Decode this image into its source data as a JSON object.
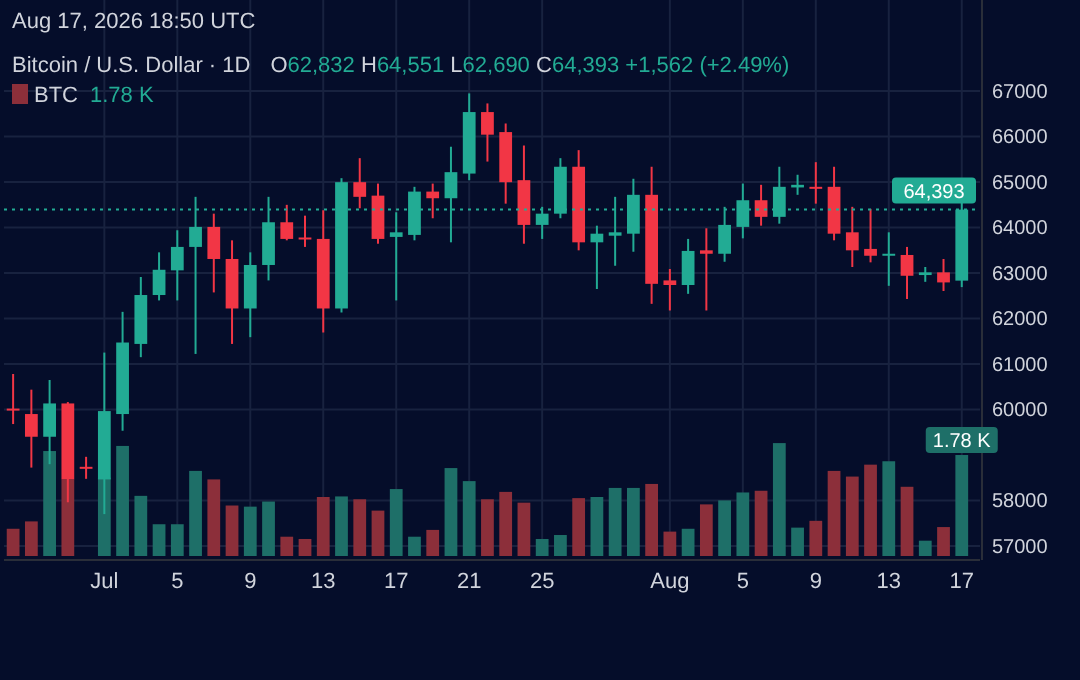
{
  "chart_data": {
    "type": "candlestick",
    "title": "Bitcoin / U.S. Dollar · 1D",
    "annotations": [
      "Aug 17, 2026 18:50 UTC",
      "O62,832 H64,551 L62,690 C64,393 +1,562 (+2.49%)"
    ],
    "x": [
      "2026-06-26",
      "2026-06-27",
      "2026-06-28",
      "2026-06-29",
      "2026-06-30",
      "2026-07-01",
      "2026-07-02",
      "2026-07-03",
      "2026-07-04",
      "2026-07-05",
      "2026-07-06",
      "2026-07-07",
      "2026-07-08",
      "2026-07-09",
      "2026-07-10",
      "2026-07-11",
      "2026-07-12",
      "2026-07-13",
      "2026-07-14",
      "2026-07-15",
      "2026-07-16",
      "2026-07-17",
      "2026-07-18",
      "2026-07-19",
      "2026-07-20",
      "2026-07-21",
      "2026-07-22",
      "2026-07-23",
      "2026-07-24",
      "2026-07-25",
      "2026-07-26",
      "2026-07-27",
      "2026-07-28",
      "2026-07-29",
      "2026-07-30",
      "2026-07-31",
      "2026-08-01",
      "2026-08-02",
      "2026-08-03",
      "2026-08-04",
      "2026-08-05",
      "2026-08-06",
      "2026-08-07",
      "2026-08-08",
      "2026-08-09",
      "2026-08-10",
      "2026-08-11",
      "2026-08-12",
      "2026-08-13",
      "2026-08-14",
      "2026-08-15",
      "2026-08-16",
      "2026-08-17"
    ],
    "ohlc": [
      [
        60020,
        60780,
        59680,
        59990
      ],
      [
        59900,
        60436,
        58723,
        59401
      ],
      [
        59401,
        60648,
        58798,
        60133
      ],
      [
        60133,
        60163,
        57961,
        58463
      ],
      [
        58740,
        58960,
        58476,
        58700
      ],
      [
        58463,
        61251,
        57701,
        59965
      ],
      [
        59900,
        62146,
        59533,
        61472
      ],
      [
        61441,
        62912,
        61150,
        62516
      ],
      [
        62516,
        63454,
        62397,
        63071
      ],
      [
        63058,
        63939,
        62397,
        63573
      ],
      [
        63573,
        64674,
        61221,
        64013
      ],
      [
        64013,
        64304,
        62573,
        63308
      ],
      [
        63308,
        63718,
        61441,
        62220
      ],
      [
        62220,
        63454,
        61590,
        63176
      ],
      [
        63176,
        64674,
        62837,
        64115
      ],
      [
        64115,
        64498,
        63718,
        63749
      ],
      [
        63780,
        64260,
        63573,
        63740
      ],
      [
        63749,
        64379,
        61692,
        62220
      ],
      [
        62220,
        65084,
        62132,
        64996
      ],
      [
        64996,
        65524,
        64423,
        64674
      ],
      [
        64700,
        64965,
        63643,
        63749
      ],
      [
        63793,
        64335,
        62397,
        63894
      ],
      [
        63837,
        64894,
        63718,
        64789
      ],
      [
        64789,
        64965,
        64203,
        64643
      ],
      [
        64643,
        65775,
        63674,
        65216
      ],
      [
        65185,
        66947,
        65040,
        66537
      ],
      [
        66537,
        66727,
        65449,
        66040
      ],
      [
        66097,
        66286,
        64524,
        64996
      ],
      [
        65040,
        65802,
        63643,
        64057
      ],
      [
        64057,
        64454,
        63749,
        64304
      ],
      [
        64304,
        65524,
        64203,
        65335
      ],
      [
        65335,
        65700,
        63498,
        63674
      ],
      [
        63674,
        64040,
        62648,
        63864
      ],
      [
        63820,
        64674,
        63159,
        63894
      ],
      [
        63864,
        65071,
        63467,
        64718
      ],
      [
        64718,
        65335,
        62322,
        62762
      ],
      [
        62837,
        63088,
        62176,
        62736
      ],
      [
        62736,
        63749,
        62542,
        63485
      ],
      [
        63498,
        63983,
        62176,
        63423
      ],
      [
        63423,
        64454,
        63247,
        64057
      ],
      [
        64013,
        64965,
        63762,
        64599
      ],
      [
        64599,
        64938,
        64040,
        64234
      ],
      [
        64234,
        65335,
        64084,
        64894
      ],
      [
        64880,
        65159,
        64718,
        64938
      ],
      [
        64894,
        65436,
        64524,
        64850
      ],
      [
        64894,
        65335,
        63718,
        63864
      ],
      [
        63894,
        64454,
        63132,
        63498
      ],
      [
        63529,
        64410,
        63234,
        63379
      ],
      [
        63379,
        63894,
        62718,
        63423
      ],
      [
        63396,
        63573,
        62428,
        62939
      ],
      [
        62955,
        63132,
        62806,
        63014
      ],
      [
        63014,
        63308,
        62604,
        62793
      ],
      [
        62832,
        64551,
        62690,
        64393
      ]
    ],
    "colors": [
      "#f23645",
      "#f23645",
      "#22ab94",
      "#f23645",
      "#f23645",
      "#22ab94",
      "#22ab94",
      "#22ab94",
      "#22ab94",
      "#22ab94",
      "#22ab94",
      "#f23645",
      "#f23645",
      "#22ab94",
      "#22ab94",
      "#f23645",
      "#f23645",
      "#f23645",
      "#22ab94",
      "#f23645",
      "#f23645",
      "#22ab94",
      "#22ab94",
      "#f23645",
      "#22ab94",
      "#22ab94",
      "#f23645",
      "#f23645",
      "#f23645",
      "#22ab94",
      "#22ab94",
      "#f23645",
      "#22ab94",
      "#22ab94",
      "#22ab94",
      "#f23645",
      "#f23645",
      "#22ab94",
      "#f23645",
      "#22ab94",
      "#22ab94",
      "#f23645",
      "#22ab94",
      "#22ab94",
      "#f23645",
      "#f23645",
      "#f23645",
      "#f23645",
      "#22ab94",
      "#f23645",
      "#22ab94",
      "#f23645",
      "#22ab94"
    ],
    "series": [
      {
        "type": "bar",
        "name": "BTC",
        "axis": "y2",
        "values": [
          0.48,
          0.61,
          1.85,
          1.35,
          null,
          1.38,
          1.94,
          1.06,
          0.56,
          0.56,
          1.5,
          1.35,
          0.89,
          0.87,
          0.96,
          0.34,
          0.3,
          1.04,
          1.05,
          1.0,
          0.8,
          1.18,
          0.34,
          0.46,
          1.55,
          1.32,
          1.0,
          1.13,
          0.94,
          0.3,
          0.37,
          1.02,
          1.04,
          1.2,
          1.2,
          1.27,
          0.43,
          0.48,
          0.91,
          0.98,
          1.12,
          1.15,
          1.99,
          0.5,
          0.62,
          1.5,
          1.4,
          1.61,
          1.67,
          1.22,
          0.27,
          0.51,
          1.78
        ],
        "colors": [
          "#8c2f3a",
          "#8c2f3a",
          "#1e6f68",
          "#8c2f3a",
          null,
          "#1e6f68",
          "#1e6f68",
          "#1e6f68",
          "#1e6f68",
          "#1e6f68",
          "#1e6f68",
          "#8c2f3a",
          "#8c2f3a",
          "#1e6f68",
          "#1e6f68",
          "#8c2f3a",
          "#8c2f3a",
          "#8c2f3a",
          "#1e6f68",
          "#8c2f3a",
          "#8c2f3a",
          "#1e6f68",
          "#1e6f68",
          "#8c2f3a",
          "#1e6f68",
          "#1e6f68",
          "#8c2f3a",
          "#8c2f3a",
          "#8c2f3a",
          "#1e6f68",
          "#1e6f68",
          "#8c2f3a",
          "#1e6f68",
          "#1e6f68",
          "#1e6f68",
          "#8c2f3a",
          "#8c2f3a",
          "#1e6f68",
          "#8c2f3a",
          "#1e6f68",
          "#1e6f68",
          "#8c2f3a",
          "#1e6f68",
          "#1e6f68",
          "#8c2f3a",
          "#8c2f3a",
          "#8c2f3a",
          "#8c2f3a",
          "#1e6f68",
          "#8c2f3a",
          "#1e6f68",
          "#8c2f3a",
          "#1e6f68"
        ],
        "value_labels": [
          null,
          null,
          null,
          null,
          null,
          null,
          null,
          null,
          null,
          null,
          null,
          null,
          null,
          null,
          null,
          null,
          null,
          null,
          null,
          null,
          null,
          null,
          null,
          null,
          null,
          null,
          null,
          null,
          null,
          null,
          null,
          null,
          null,
          null,
          null,
          null,
          null,
          null,
          null,
          null,
          null,
          null,
          null,
          null,
          null,
          null,
          null,
          null,
          null,
          null,
          null,
          null,
          "1.78 K"
        ]
      }
    ],
    "xlim": [
      "2026-06-25T12:00",
      "2026-08-18T00:00"
    ],
    "xticks": [
      {
        "value": "2026-07-01",
        "label": "Jul"
      },
      {
        "value": "2026-07-05",
        "label": "5"
      },
      {
        "value": "2026-07-09",
        "label": "9"
      },
      {
        "value": "2026-07-13",
        "label": "13"
      },
      {
        "value": "2026-07-17",
        "label": "17"
      },
      {
        "value": "2026-07-21",
        "label": "21"
      },
      {
        "value": "2026-07-25",
        "label": "25"
      },
      {
        "value": "2026-08-01",
        "label": "Aug"
      },
      {
        "value": "2026-08-05",
        "label": "5"
      },
      {
        "value": "2026-08-09",
        "label": "9"
      },
      {
        "value": "2026-08-13",
        "label": "13"
      },
      {
        "value": "2026-08-17",
        "label": "17"
      }
    ],
    "ylim": [
      56780,
      69000
    ],
    "yticks": [
      57000,
      58000,
      60000,
      61000,
      62000,
      63000,
      64000,
      65000,
      66000,
      67000
    ],
    "y2lim": [
      0,
      9.8
    ],
    "ref_lines": [
      {
        "axis": "y",
        "value": 64393,
        "label": "64,393",
        "color": "#22ab94",
        "line_style": "dotted"
      }
    ],
    "grid": true,
    "legend": "top left"
  }
}
